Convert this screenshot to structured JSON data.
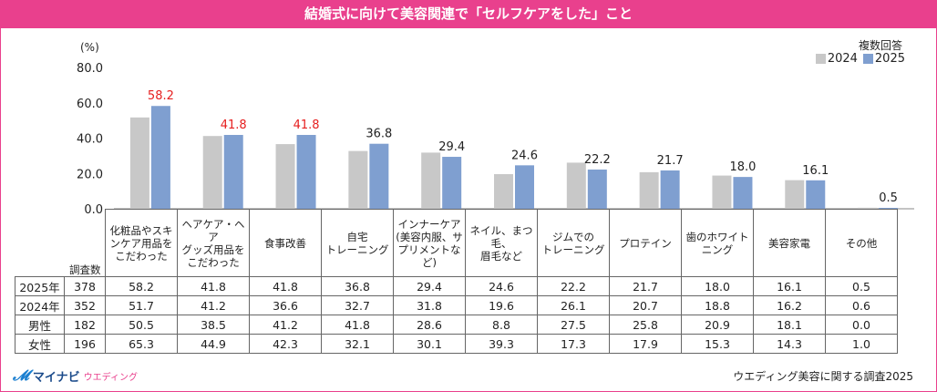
{
  "title": "結婚式に向けて美容関連で「セルフケアをした」こと",
  "legend_title": "複数回答",
  "source": "ウエディング美容に関する調査2025",
  "logo": {
    "name": "マイナビ",
    "sub": "ウエディング"
  },
  "colors": {
    "brand": "#e9408d",
    "series_2024": "#c8c8c8",
    "series_2025": "#7f9fd0",
    "highlight": "#e61e1e"
  },
  "chart_data": {
    "type": "bar",
    "ylabel": "(%)",
    "ylim": [
      0,
      80
    ],
    "yticks": [
      "80.0",
      "60.0",
      "40.0",
      "20.0",
      "0.0"
    ],
    "ytick_values": [
      80,
      60,
      40,
      20,
      0
    ],
    "categories": [
      [
        "化粧品やスキ",
        "ンケア用品を",
        "こだわった"
      ],
      [
        "ヘアケア・ヘア",
        "グッズ用品を",
        "こだわった"
      ],
      [
        "食事改善"
      ],
      [
        "自宅",
        "トレーニング"
      ],
      [
        "インナーケア",
        "(美容内服、サ",
        "プリメントな",
        "ど)"
      ],
      [
        "ネイル、まつ毛、",
        "眉毛など"
      ],
      [
        "ジムでの",
        "トレーニング"
      ],
      [
        "プロテイン"
      ],
      [
        "歯のホワイト",
        "ニング"
      ],
      [
        "美容家電"
      ],
      [
        "その他"
      ]
    ],
    "series": [
      {
        "name": "2024",
        "values": [
          51.7,
          41.2,
          36.6,
          32.7,
          31.8,
          19.6,
          26.1,
          20.7,
          18.8,
          16.2,
          0.6
        ]
      },
      {
        "name": "2025",
        "values": [
          58.2,
          41.8,
          41.8,
          36.8,
          29.4,
          24.6,
          22.2,
          21.7,
          18.0,
          16.1,
          0.5
        ]
      }
    ],
    "data_labels": [
      "58.2",
      "41.8",
      "41.8",
      "36.8",
      "29.4",
      "24.6",
      "22.2",
      "21.7",
      "18.0",
      "16.1",
      "0.5"
    ],
    "highlighted": [
      true,
      true,
      true,
      false,
      false,
      false,
      false,
      false,
      false,
      false,
      false
    ]
  },
  "table": {
    "count_header": "調査数",
    "rows": [
      {
        "label": "2025年",
        "n": "378",
        "values": [
          "58.2",
          "41.8",
          "41.8",
          "36.8",
          "29.4",
          "24.6",
          "22.2",
          "21.7",
          "18.0",
          "16.1",
          "0.5"
        ]
      },
      {
        "label": "2024年",
        "n": "352",
        "values": [
          "51.7",
          "41.2",
          "36.6",
          "32.7",
          "31.8",
          "19.6",
          "26.1",
          "20.7",
          "18.8",
          "16.2",
          "0.6"
        ]
      },
      {
        "label": "男性",
        "n": "182",
        "values": [
          "50.5",
          "38.5",
          "41.2",
          "41.8",
          "28.6",
          "8.8",
          "27.5",
          "25.8",
          "20.9",
          "18.1",
          "0.0"
        ]
      },
      {
        "label": "女性",
        "n": "196",
        "values": [
          "65.3",
          "44.9",
          "42.3",
          "32.1",
          "30.1",
          "39.3",
          "17.3",
          "17.9",
          "15.3",
          "14.3",
          "1.0"
        ]
      }
    ]
  }
}
